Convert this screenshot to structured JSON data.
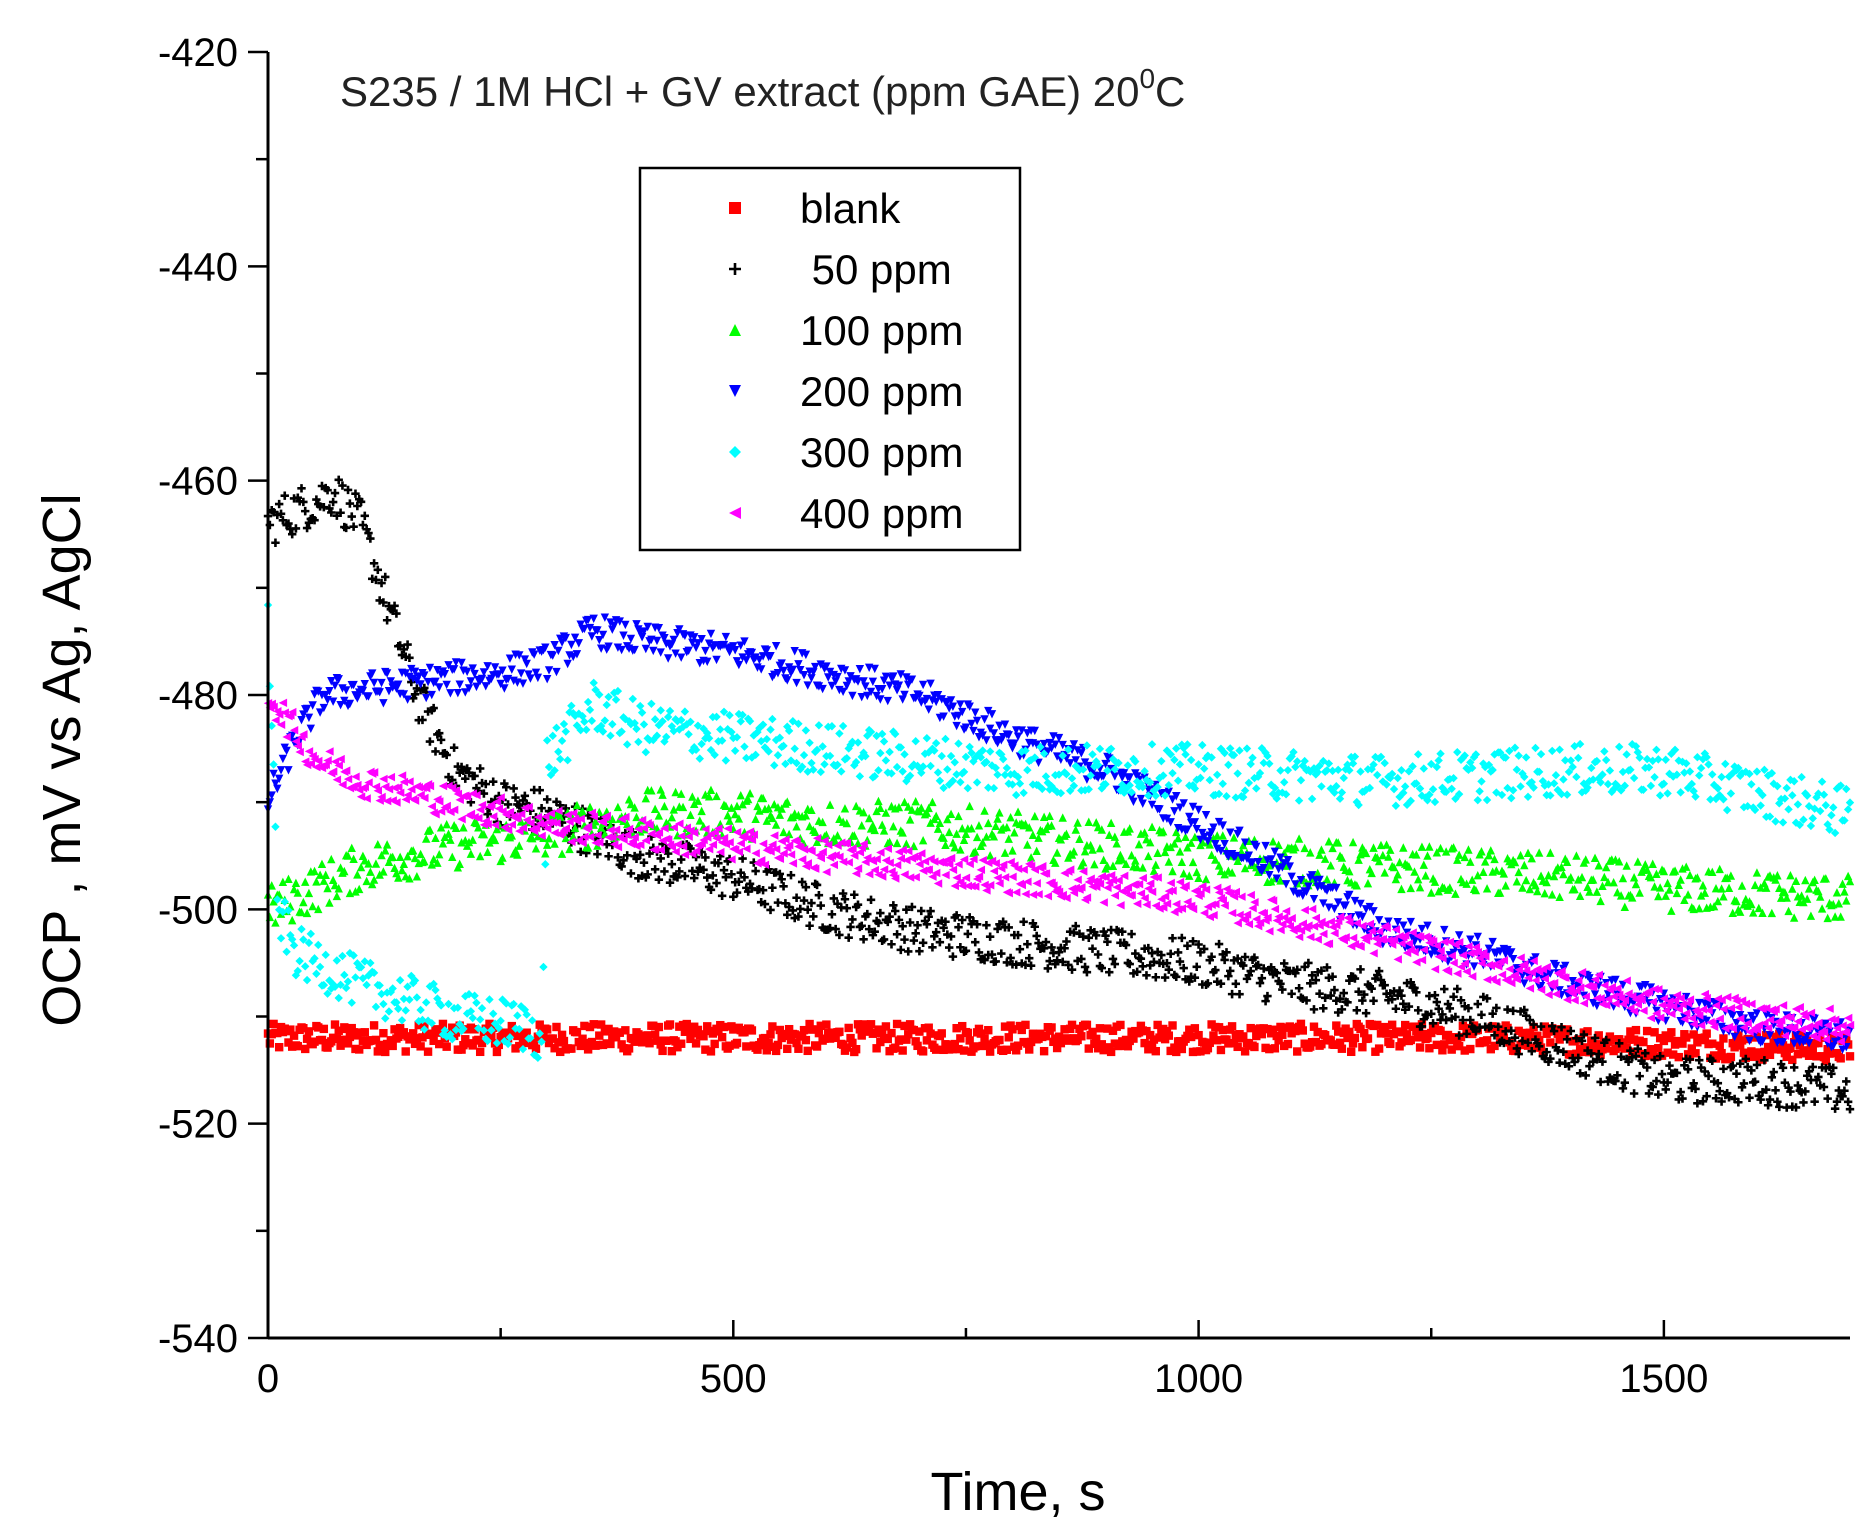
{
  "chart_data": {
    "type": "scatter",
    "title": {
      "prefix": "S235 / 1M HCl + GV extract (ppm GAE) 20",
      "superscript": "0",
      "suffix": "C"
    },
    "xlabel": "Time, s",
    "ylabel": "OCP , mV vs Ag, AgCl",
    "xlim": [
      0,
      1700
    ],
    "ylim": [
      -540,
      -420
    ],
    "xticks": [
      0,
      500,
      1000,
      1500
    ],
    "xtick_labels": [
      "0",
      "500",
      "1000",
      "1500"
    ],
    "yticks": [
      -420,
      -440,
      -460,
      -480,
      -500,
      -520,
      -540
    ],
    "ytick_labels": [
      "-420",
      "-440",
      "-460",
      "-480",
      "-500",
      "-520",
      "-540"
    ],
    "legend_position": "upper-center",
    "series": [
      {
        "name": "blank",
        "color": "#ff0000",
        "marker": "square",
        "noise": 0.6,
        "points": [
          [
            0,
            -512
          ],
          [
            1300,
            -512
          ],
          [
            1700,
            -513
          ]
        ]
      },
      {
        "name": " 50 ppm",
        "color": "#000000",
        "marker": "plus",
        "noise": 1.0,
        "points": [
          [
            0,
            -464
          ],
          [
            50,
            -462
          ],
          [
            70,
            -461
          ],
          [
            100,
            -464
          ],
          [
            130,
            -472
          ],
          [
            160,
            -480
          ],
          [
            200,
            -487
          ],
          [
            250,
            -490
          ],
          [
            300,
            -491
          ],
          [
            400,
            -495
          ],
          [
            500,
            -497
          ],
          [
            600,
            -500
          ],
          [
            700,
            -502
          ],
          [
            800,
            -503
          ],
          [
            1000,
            -505
          ],
          [
            1100,
            -507
          ],
          [
            1200,
            -508
          ],
          [
            1300,
            -510
          ],
          [
            1400,
            -513
          ],
          [
            1500,
            -516
          ],
          [
            1600,
            -516
          ],
          [
            1700,
            -517
          ]
        ]
      },
      {
        "name": "100 ppm",
        "color": "#00ff00",
        "marker": "triangle-up",
        "noise": 1.0,
        "points": [
          [
            0,
            -500
          ],
          [
            50,
            -498
          ],
          [
            100,
            -496
          ],
          [
            200,
            -494
          ],
          [
            300,
            -493
          ],
          [
            400,
            -491
          ],
          [
            500,
            -491
          ],
          [
            600,
            -492
          ],
          [
            700,
            -492
          ],
          [
            800,
            -493
          ],
          [
            900,
            -494
          ],
          [
            1000,
            -495
          ],
          [
            1200,
            -496
          ],
          [
            1400,
            -497
          ],
          [
            1500,
            -498
          ],
          [
            1700,
            -499
          ]
        ]
      },
      {
        "name": "200 ppm",
        "color": "#0000ff",
        "marker": "triangle-down",
        "noise": 0.7,
        "points": [
          [
            0,
            -490
          ],
          [
            30,
            -484
          ],
          [
            60,
            -480
          ],
          [
            150,
            -479
          ],
          [
            250,
            -478
          ],
          [
            300,
            -477
          ],
          [
            350,
            -474
          ],
          [
            400,
            -475
          ],
          [
            500,
            -476
          ],
          [
            600,
            -478
          ],
          [
            700,
            -480
          ],
          [
            800,
            -484
          ],
          [
            900,
            -487
          ],
          [
            1000,
            -492
          ],
          [
            1100,
            -497
          ],
          [
            1200,
            -502
          ],
          [
            1300,
            -504
          ],
          [
            1400,
            -507
          ],
          [
            1500,
            -509
          ],
          [
            1600,
            -511
          ],
          [
            1700,
            -512
          ]
        ]
      },
      {
        "name": "300 ppm",
        "color": "#00ffff",
        "marker": "diamond",
        "noise": 1.1,
        "points": [
          [
            0,
            -472
          ],
          [
            10,
            -500
          ],
          [
            30,
            -504
          ],
          [
            100,
            -507
          ],
          [
            200,
            -510
          ],
          [
            280,
            -511
          ],
          [
            295,
            -512
          ],
          [
            300,
            -486
          ],
          [
            350,
            -481
          ],
          [
            400,
            -483
          ],
          [
            500,
            -484
          ],
          [
            600,
            -485
          ],
          [
            700,
            -486
          ],
          [
            800,
            -487
          ],
          [
            900,
            -487
          ],
          [
            1000,
            -487
          ],
          [
            1200,
            -488
          ],
          [
            1400,
            -487
          ],
          [
            1500,
            -487
          ],
          [
            1600,
            -489
          ],
          [
            1700,
            -491
          ]
        ]
      },
      {
        "name": "400 ppm",
        "color": "#ff00ff",
        "marker": "triangle-left",
        "noise": 0.7,
        "points": [
          [
            0,
            -480
          ],
          [
            50,
            -486
          ],
          [
            100,
            -488
          ],
          [
            200,
            -490
          ],
          [
            300,
            -492
          ],
          [
            400,
            -493
          ],
          [
            500,
            -494
          ],
          [
            600,
            -495
          ],
          [
            700,
            -496
          ],
          [
            800,
            -497
          ],
          [
            900,
            -498
          ],
          [
            1000,
            -499
          ],
          [
            1100,
            -501
          ],
          [
            1200,
            -503
          ],
          [
            1300,
            -505
          ],
          [
            1400,
            -507
          ],
          [
            1500,
            -509
          ],
          [
            1600,
            -510
          ],
          [
            1700,
            -511
          ]
        ]
      }
    ]
  }
}
